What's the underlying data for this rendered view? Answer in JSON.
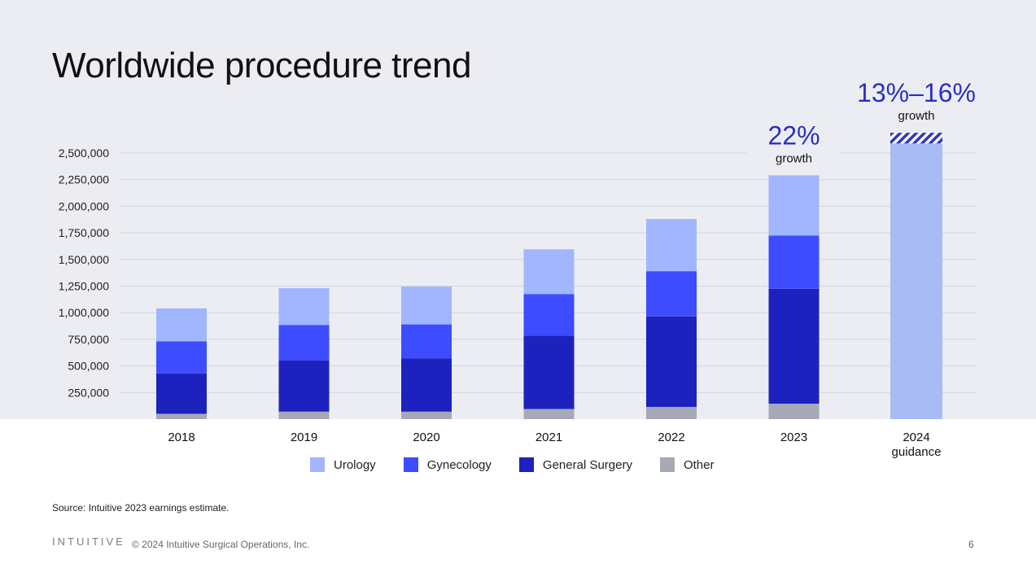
{
  "slide": {
    "title": "Worldwide procedure trend",
    "source": "Source: Intuitive 2023 earnings estimate.",
    "logo_text": "INTUITIVE",
    "copyright": "© 2024 Intuitive Surgical Operations, Inc.",
    "page_number": "6"
  },
  "chart_data": {
    "type": "bar",
    "stacked": true,
    "categories": [
      "2018",
      "2019",
      "2020",
      "2021",
      "2022",
      "2023",
      "2024"
    ],
    "category_sublabels": [
      "",
      "",
      "",
      "",
      "",
      "",
      "guidance"
    ],
    "ylim": [
      0,
      2500000
    ],
    "yticks": [
      250000,
      500000,
      750000,
      1000000,
      1250000,
      1500000,
      1750000,
      2000000,
      2250000,
      2500000
    ],
    "ytick_labels": [
      "250,000",
      "500,000",
      "750,000",
      "1,000,000",
      "1,250,000",
      "1,500,000",
      "1,750,000",
      "2,000,000",
      "2,250,000",
      "2,500,000"
    ],
    "grid": true,
    "legend_position": "bottom",
    "series": [
      {
        "name": "Other",
        "color": "#a6a9b6",
        "values": [
          50000,
          70000,
          70000,
          95000,
          115000,
          145000,
          null
        ]
      },
      {
        "name": "General Surgery",
        "color": "#1d22bf",
        "values": [
          380000,
          480000,
          500000,
          690000,
          850000,
          1080000,
          null
        ]
      },
      {
        "name": "Gynecology",
        "color": "#3e4cff",
        "values": [
          300000,
          335000,
          320000,
          390000,
          425000,
          500000,
          null
        ]
      },
      {
        "name": "Urology",
        "color": "#a2b5ff",
        "values": [
          310000,
          345000,
          355000,
          420000,
          490000,
          565000,
          null
        ]
      }
    ],
    "legend_order": [
      "Urology",
      "Gynecology",
      "General Surgery",
      "Other"
    ],
    "guidance": {
      "category": "2024",
      "low": 2590000,
      "high": 2690000,
      "color": "#a9bbf5",
      "hatch_color": "#2b35c8"
    },
    "annotations": [
      {
        "category": "2023",
        "value": "22%",
        "label": "growth"
      },
      {
        "category": "2024",
        "value": "13%–16%",
        "label": "growth"
      }
    ],
    "annotation_color": "#2a30c4"
  }
}
